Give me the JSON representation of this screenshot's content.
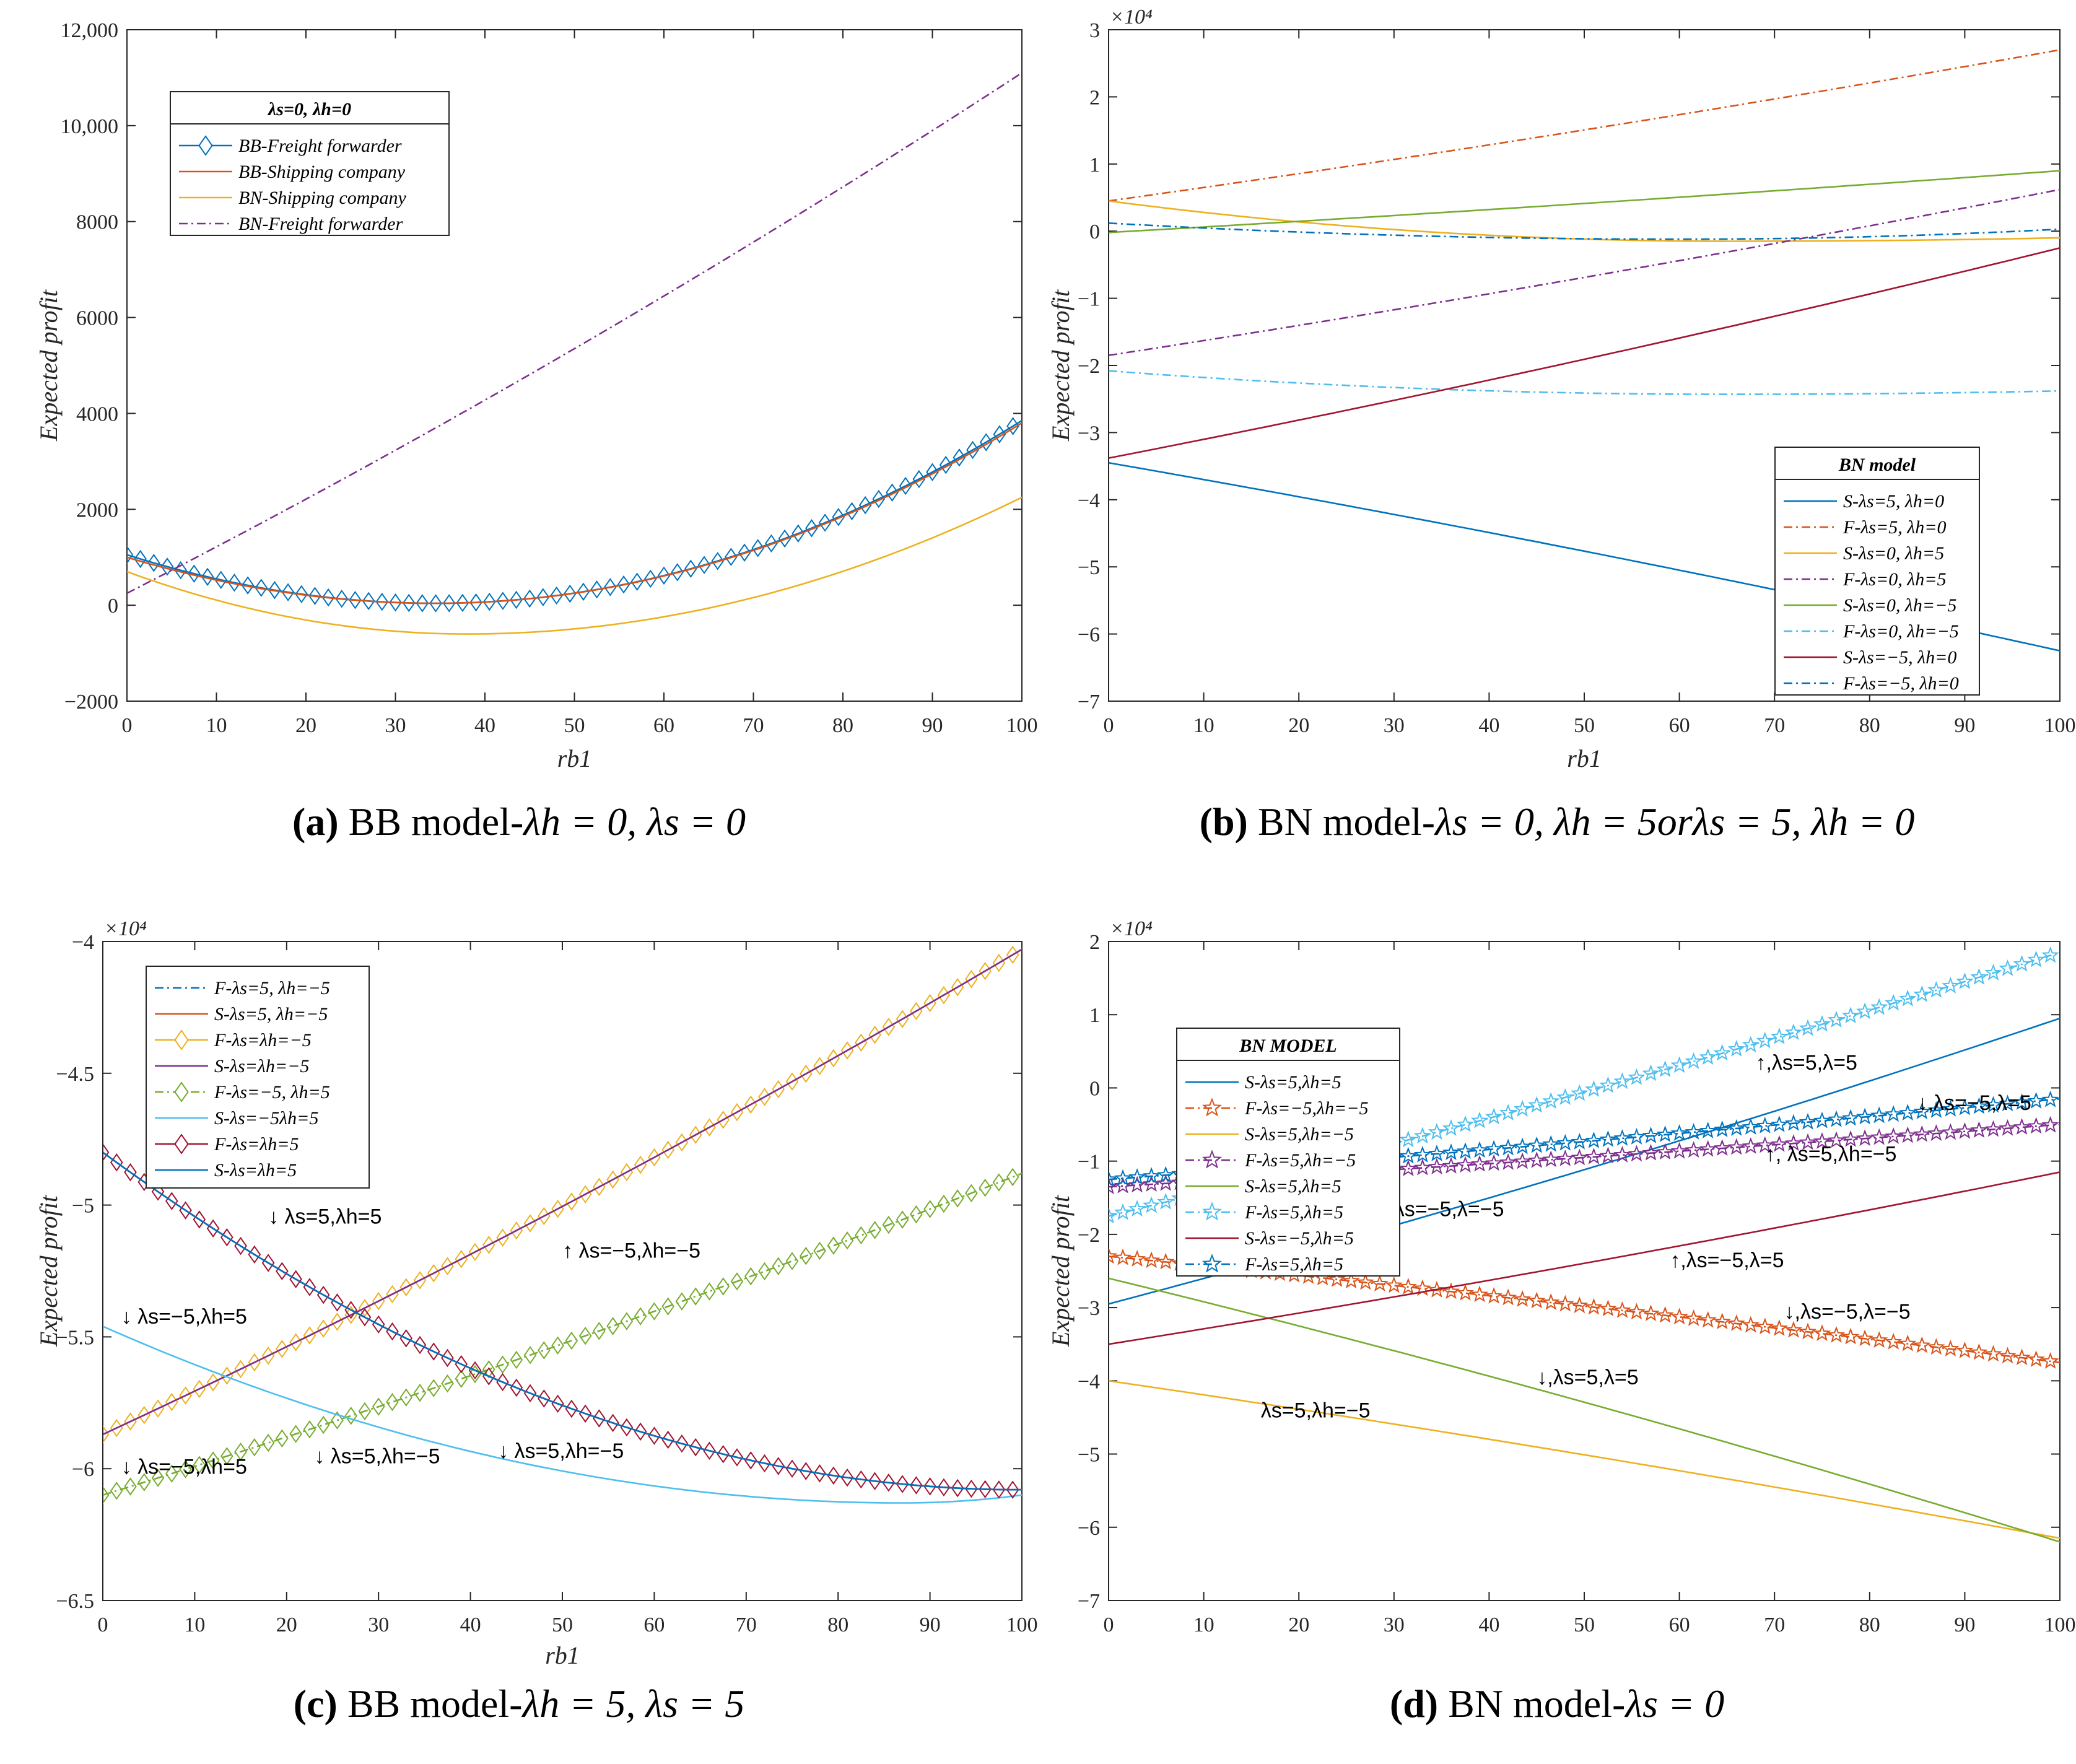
{
  "chart_data": [
    {
      "id": "a",
      "type": "line",
      "caption": {
        "label": "(a)",
        "text": "BB model-",
        "math": "λh = 0, λs = 0"
      },
      "xlabel": "rb1",
      "ylabel": "Expected profit",
      "exponent": "",
      "xlim": [
        0,
        100
      ],
      "ylim": [
        -2000,
        12000
      ],
      "xticks": [
        "0",
        "10",
        "20",
        "30",
        "40",
        "50",
        "60",
        "70",
        "80",
        "90",
        "100"
      ],
      "yticks": [
        "−2000",
        "0",
        "2000",
        "4000",
        "6000",
        "8000",
        "10,000",
        "12,000"
      ],
      "legend": {
        "title": "λs=0, λh=0",
        "position": "top-left",
        "entries": [
          "BB-Freight forwarder",
          "BB-Shipping company",
          "BN-Shipping company",
          "BN-Freight forwarder"
        ]
      },
      "series": [
        {
          "name": "BB-Freight forwarder",
          "color": "#0072BD",
          "style": "solid",
          "marker": "diamond",
          "quad": [
            1050,
            34.5,
            40,
            3850
          ]
        },
        {
          "name": "BB-Shipping company",
          "color": "#D95319",
          "style": "solid",
          "marker": "none",
          "quad": [
            1000,
            34.5,
            40,
            3800
          ]
        },
        {
          "name": "BN-Shipping company",
          "color": "#EDB120",
          "style": "solid",
          "marker": "none",
          "quad": [
            700,
            38,
            -600,
            2250
          ]
        },
        {
          "name": "BN-Freight forwarder",
          "color": "#7E2F8E",
          "style": "dashdot",
          "marker": "none",
          "quad": [
            250,
            0,
            250,
            11100
          ]
        }
      ],
      "annotations": []
    },
    {
      "id": "b",
      "type": "line",
      "caption": {
        "label": "(b)",
        "text": "BN model-",
        "math": "λs = 0, λh = 5orλs = 5, λh = 0"
      },
      "xlabel": "rb1",
      "ylabel": "Expected profit",
      "exponent": "×10⁴",
      "xlim": [
        0,
        100
      ],
      "ylim": [
        -7,
        3
      ],
      "xticks": [
        "0",
        "10",
        "20",
        "30",
        "40",
        "50",
        "60",
        "70",
        "80",
        "90",
        "100"
      ],
      "yticks": [
        "−7",
        "−6",
        "−5",
        "−4",
        "−3",
        "−2",
        "−1",
        "0",
        "1",
        "2",
        "3"
      ],
      "legend": {
        "title": "BN model",
        "position": "bottom-right",
        "entries": [
          "S-λs=5, λh=0",
          "F-λs=5, λh=0",
          "S-λs=0, λh=5",
          "F-λs=0, λh=5",
          "S-λs=0, λh=−5",
          "F-λs=0, λh=−5",
          "S-λs=−5, λh=0",
          "F-λs=−5, λh=0"
        ]
      },
      "series": [
        {
          "name": "S-λs=5, λh=0",
          "color": "#0072BD",
          "style": "solid",
          "marker": "none",
          "quad": [
            -3.45,
            0,
            -3.45,
            -6.25
          ]
        },
        {
          "name": "F-λs=5, λh=0",
          "color": "#D95319",
          "style": "dashdot",
          "marker": "none",
          "quad": [
            0.45,
            0,
            0.45,
            2.7
          ]
        },
        {
          "name": "S-λs=0, λh=5",
          "color": "#EDB120",
          "style": "solid",
          "marker": "none",
          "quad": [
            0.45,
            65,
            -0.15,
            -0.1
          ]
        },
        {
          "name": "F-λs=0, λh=5",
          "color": "#7E2F8E",
          "style": "dashdot",
          "marker": "none",
          "quad": [
            -1.85,
            0,
            -1.85,
            0.62
          ]
        },
        {
          "name": "S-λs=0, λh=−5",
          "color": "#77AC30",
          "style": "solid",
          "marker": "none",
          "quad": [
            -0.02,
            0,
            -0.02,
            0.9
          ]
        },
        {
          "name": "F-λs=0, λh=−5",
          "color": "#4DBEEE",
          "style": "dashdot",
          "marker": "none",
          "quad": [
            -2.08,
            65,
            -2.43,
            -2.38
          ]
        },
        {
          "name": "S-λs=−5, λh=0",
          "color": "#A2142F",
          "style": "solid",
          "marker": "none",
          "quad": [
            -3.38,
            0,
            -3.38,
            -0.25
          ]
        },
        {
          "name": "F-λs=−5, λh=0",
          "color": "#0072BD",
          "style": "dashdot",
          "marker": "none",
          "quad": [
            0.12,
            60,
            -0.12,
            0.03
          ]
        }
      ],
      "annotations": []
    },
    {
      "id": "c",
      "type": "line",
      "caption": {
        "label": "(c)",
        "text": "BB model-",
        "math": "λh = 5, λs = 5"
      },
      "xlabel": "rb1",
      "ylabel": "Expected profit",
      "exponent": "×10⁴",
      "xlim": [
        0,
        100
      ],
      "ylim": [
        -6.5,
        -4
      ],
      "xticks": [
        "0",
        "10",
        "20",
        "30",
        "40",
        "50",
        "60",
        "70",
        "80",
        "90",
        "100"
      ],
      "yticks": [
        "−6.5",
        "−6",
        "−5.5",
        "−5",
        "−4.5",
        "−4"
      ],
      "legend": {
        "title": "",
        "position": "top-left",
        "entries": [
          "F-λs=5, λh=−5",
          "S-λs=5, λh=−5",
          "F-λs=λh=−5",
          "S-λs=λh=−5",
          "F-λs=−5, λh=5",
          "S-λs=−5λh=5",
          "F-λs=λh=5",
          "S-λs=λh=5"
        ]
      },
      "series": [
        {
          "name": "F-λs=5, λh=−5",
          "color": "#0072BD",
          "style": "dashdot",
          "marker": "none",
          "quad": [
            -4.8,
            100,
            -6.08,
            -6.08
          ]
        },
        {
          "name": "S-λs=5, λh=−5",
          "color": "#D95319",
          "style": "solid",
          "marker": "none",
          "quad": [
            -5.87,
            0,
            -5.87,
            -4.03
          ]
        },
        {
          "name": "F-λs=λh=−5",
          "color": "#EDB120",
          "style": "solid",
          "marker": "diamond",
          "quad": [
            -5.87,
            0,
            -5.87,
            -4.03
          ]
        },
        {
          "name": "S-λs=λh=−5",
          "color": "#7E2F8E",
          "style": "solid",
          "marker": "none",
          "quad": [
            -5.87,
            0,
            -5.87,
            -4.03
          ]
        },
        {
          "name": "F-λs=−5, λh=5",
          "color": "#77AC30",
          "style": "dashdot",
          "marker": "diamond",
          "quad": [
            -6.1,
            0,
            -6.1,
            -4.88
          ]
        },
        {
          "name": "S-λs=−5λh=5",
          "color": "#4DBEEE",
          "style": "solid",
          "marker": "none",
          "quad": [
            -5.46,
            87,
            -6.13,
            -6.1
          ]
        },
        {
          "name": "F-λs=λh=5",
          "color": "#A2142F",
          "style": "solid",
          "marker": "diamond",
          "quad": [
            -4.8,
            100,
            -6.08,
            -6.08
          ]
        },
        {
          "name": "S-λs=λh=5",
          "color": "#0072BD",
          "style": "solid",
          "marker": "none",
          "quad": [
            -4.8,
            100,
            -6.08,
            -6.08
          ]
        }
      ],
      "annotations": [
        {
          "text": "↓ λs=5,λh=5",
          "x": 18,
          "y": -5.07
        },
        {
          "text": "↑ λs=−5,λh=−5",
          "x": 50,
          "y": -5.2
        },
        {
          "text": "↓ λs=−5,λh=5",
          "x": 2,
          "y": -5.45
        },
        {
          "text": "↓ λs=5,λh=−5",
          "x": 23,
          "y": -5.98
        },
        {
          "text": "↓ λs=5,λh=−5",
          "x": 43,
          "y": -5.96
        },
        {
          "text": "↓ λs=−5,λh=5",
          "x": 2,
          "y": -6.02
        }
      ]
    },
    {
      "id": "d",
      "type": "line",
      "caption": {
        "label": "(d)",
        "text": "BN model-",
        "math": "λs = 0"
      },
      "xlabel": "",
      "ylabel": "Expected profit",
      "exponent": "×10⁴",
      "xlim": [
        0,
        100
      ],
      "ylim": [
        -7,
        2
      ],
      "xticks": [
        "0",
        "10",
        "20",
        "30",
        "40",
        "50",
        "60",
        "70",
        "80",
        "90",
        "100"
      ],
      "yticks": [
        "−7",
        "−6",
        "−5",
        "−4",
        "−3",
        "−2",
        "−1",
        "0",
        "1",
        "2"
      ],
      "legend": {
        "title": "BN MODEL",
        "position": "top-left",
        "entries": [
          "S-λs=5,λh=5",
          "F-λs=−5,λh=−5",
          "S-λs=5,λh=−5",
          "F-λs=5,λh=−5",
          "S-λs=5,λh=5",
          "F-λs=5,λh=5",
          "S-λs=−5,λh=5",
          "F-λs=5,λh=5"
        ]
      },
      "series": [
        {
          "name": "S-λs=5,λh=5",
          "color": "#0072BD",
          "style": "solid",
          "marker": "none",
          "quad": [
            -2.95,
            0,
            -2.95,
            0.95
          ]
        },
        {
          "name": "F-λs=−5,λh=−5",
          "color": "#D95319",
          "style": "dashdot",
          "marker": "star",
          "quad": [
            -2.3,
            0,
            -2.3,
            -3.75
          ]
        },
        {
          "name": "S-λs=5,λh=−5",
          "color": "#EDB120",
          "style": "solid",
          "marker": "none",
          "quad": [
            -4.0,
            0,
            -4.0,
            -6.15
          ]
        },
        {
          "name": "F-λs=5,λh=−5",
          "color": "#7E2F8E",
          "style": "dashdot",
          "marker": "star",
          "quad": [
            -1.35,
            0,
            -1.35,
            -0.5
          ]
        },
        {
          "name": "S-λs=5,λh=5",
          "color": "#77AC30",
          "style": "solid",
          "marker": "none",
          "quad": [
            -2.6,
            0,
            -2.6,
            -6.2
          ]
        },
        {
          "name": "F-λs=5,λh=5",
          "color": "#4DBEEE",
          "style": "dashdot",
          "marker": "star",
          "quad": [
            -1.75,
            0,
            -1.75,
            1.85
          ]
        },
        {
          "name": "S-λs=−5,λh=5",
          "color": "#A2142F",
          "style": "solid",
          "marker": "none",
          "quad": [
            -3.5,
            0,
            -3.5,
            -1.15
          ]
        },
        {
          "name": "F-λs=5,λh=5",
          "color": "#0072BD",
          "style": "dashdot",
          "marker": "star",
          "quad": [
            -1.25,
            0,
            -1.25,
            -0.15
          ]
        }
      ],
      "annotations": [
        {
          "text": "↑,λs=5,λ=5",
          "x": 68,
          "y": 0.25
        },
        {
          "text": "↓,λs=−5,λ=5",
          "x": 85,
          "y": -0.3
        },
        {
          "text": "↑, λs=5,λh=−5",
          "x": 69,
          "y": -1.0
        },
        {
          "text": "λs=−5,λ=−5",
          "x": 30,
          "y": -1.75
        },
        {
          "text": "↑,λs=−5,λ=5",
          "x": 59,
          "y": -2.45
        },
        {
          "text": "↓,λs=−5,λ=−5",
          "x": 71,
          "y": -3.15
        },
        {
          "text": "↓,λs=5,λ=5",
          "x": 45,
          "y": -4.05
        },
        {
          "text": "λs=5,λh=−5",
          "x": 16,
          "y": -4.5
        }
      ]
    }
  ]
}
